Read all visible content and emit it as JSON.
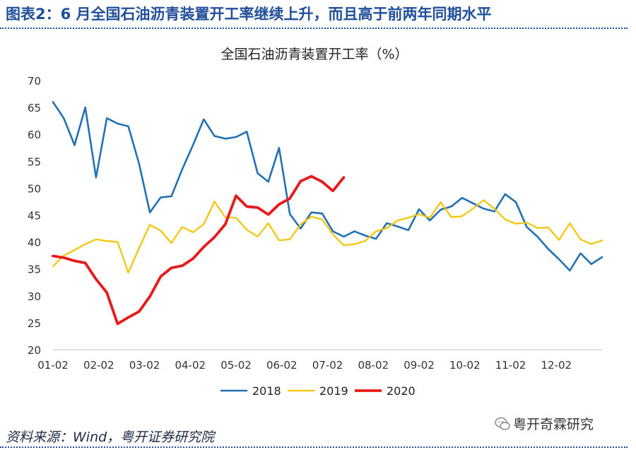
{
  "figure_title": "图表2：6 月全国石油沥青装置开工率继续上升，而且高于前两年同期水平",
  "source": "资料来源：Wind，粤开证券研究院",
  "watermark": "粤开奇霖研究",
  "chart_data": {
    "type": "line",
    "title": "全国石油沥青装置开工率（%）",
    "xlabel": "",
    "ylabel": "",
    "ylim": [
      20,
      70
    ],
    "yticks": [
      20,
      25,
      30,
      35,
      40,
      45,
      50,
      55,
      60,
      65,
      70
    ],
    "x_tick_labels": [
      "01-02",
      "02-02",
      "03-02",
      "04-02",
      "05-02",
      "06-02",
      "07-02",
      "08-02",
      "09-02",
      "10-02",
      "11-02",
      "12-02"
    ],
    "weeks_per_year": 51,
    "grid": false,
    "legend_position": "bottom",
    "series": [
      {
        "name": "2018",
        "color": "#2271b5",
        "values": [
          66,
          63,
          58,
          65,
          52,
          63,
          62,
          61.5,
          54.5,
          45.5,
          48.3,
          48.5,
          53.5,
          58,
          62.8,
          59.7,
          59.2,
          59.5,
          60.5,
          52.8,
          51.2,
          57.5,
          45.2,
          42.5,
          45.5,
          45.3,
          42,
          41,
          42,
          41.2,
          40.6,
          43.5,
          42.9,
          42.2,
          46.1,
          44,
          46,
          46.6,
          48.2,
          47.2,
          46.2,
          45.7,
          48.9,
          47.4,
          42.8,
          41,
          38.7,
          36.8,
          34.7,
          37.9,
          35.9,
          37.2
        ]
      },
      {
        "name": "2019",
        "color": "#f5c400",
        "values": [
          35.5,
          37.5,
          38.5,
          39.6,
          40.5,
          40.2,
          40,
          34.3,
          38.9,
          43.2,
          42.1,
          39.8,
          42.8,
          41.8,
          43.3,
          47.5,
          44.6,
          44.5,
          42.3,
          41,
          43.5,
          40.3,
          40.5,
          43.3,
          44.7,
          44.2,
          41.4,
          39.4,
          39.6,
          40.2,
          42,
          42.6,
          44,
          44.5,
          45.2,
          44.5,
          47.4,
          44.6,
          44.8,
          46.2,
          47.8,
          46.2,
          44.2,
          43.4,
          43.6,
          42.6,
          42.7,
          40.4,
          43.5,
          40.5,
          39.6,
          40.3
        ]
      },
      {
        "name": "2020",
        "color": "#e8191b",
        "values": [
          37.4,
          37.1,
          36.5,
          36.1,
          33.1,
          30.6,
          24.8,
          26,
          27.1,
          29.9,
          33.6,
          35.2,
          35.6,
          36.9,
          39.1,
          40.9,
          43.3,
          48.6,
          46.6,
          46.4,
          45.1,
          47,
          48.1,
          51.3,
          52.2,
          51.2,
          49.5,
          52
        ]
      }
    ]
  }
}
